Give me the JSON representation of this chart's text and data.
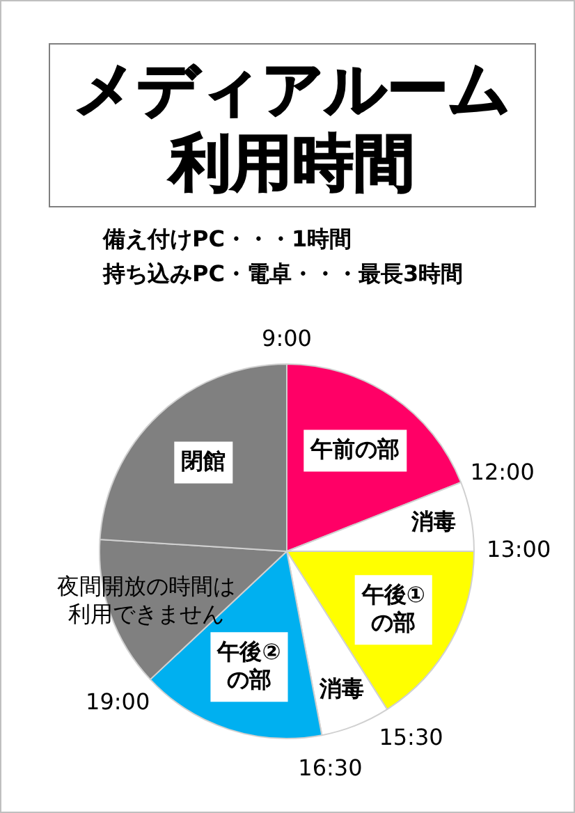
{
  "chart_data": {
    "type": "pie",
    "title": "メディアルーム利用時間",
    "annotations": [
      "備え付けPC・・・1時間",
      "持ち込みPC・電卓・・・最長3時間",
      "9:00",
      "12:00",
      "13:00",
      "15:30",
      "16:30",
      "19:00"
    ],
    "categories": [
      "午前の部",
      "消毒",
      "午後①の部",
      "消毒",
      "午後②の部",
      "夜間開放の時間は利用できません",
      "閉館"
    ],
    "values": [
      19,
      6,
      16,
      6,
      16,
      13,
      24
    ],
    "colors": [
      "#ff0066",
      "#ffffff",
      "#ffff00",
      "#ffffff",
      "#00b0f0",
      "#808080",
      "#808080"
    ]
  }
}
